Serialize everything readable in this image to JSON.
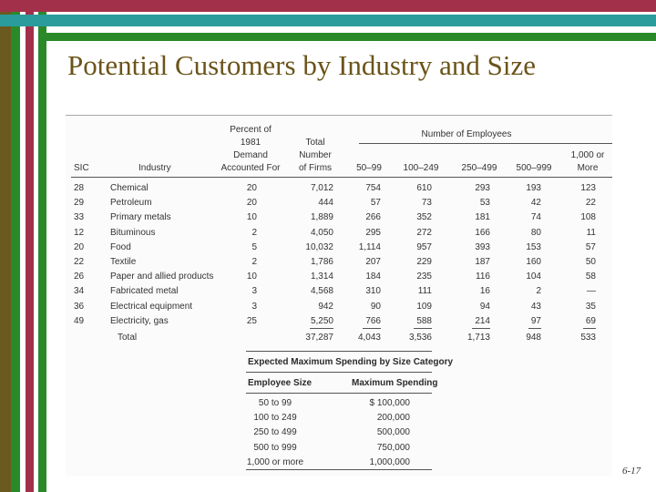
{
  "slide": {
    "title": "Potential Customers by Industry and Size",
    "number": "6-17",
    "colors": {
      "olive": "#6a5a1e",
      "green": "#2a8a2a",
      "maroon": "#a3304a",
      "teal": "#2a9c9c",
      "title": "#6b5419"
    }
  },
  "table1": {
    "headers": {
      "sic": "SIC",
      "industry": "Industry",
      "percent_lines": [
        "Percent of",
        "1981",
        "Demand",
        "Accounted For"
      ],
      "total_lines": [
        "Total",
        "Number",
        "of Firms"
      ],
      "employees_group": "Number of Employees",
      "col_50": "50–99",
      "col_100": "100–249",
      "col_250": "250–499",
      "col_500": "500–999",
      "col_1000_lines": [
        "1,000 or",
        "More"
      ]
    },
    "rows": [
      {
        "sic": "28",
        "industry": "Chemical",
        "percent": "20",
        "total": "7,012",
        "c1": "754",
        "c2": "610",
        "c3": "293",
        "c4": "193",
        "c5": "123"
      },
      {
        "sic": "29",
        "industry": "Petroleum",
        "percent": "20",
        "total": "444",
        "c1": "57",
        "c2": "73",
        "c3": "53",
        "c4": "42",
        "c5": "22"
      },
      {
        "sic": "33",
        "industry": "Primary metals",
        "percent": "10",
        "total": "1,889",
        "c1": "266",
        "c2": "352",
        "c3": "181",
        "c4": "74",
        "c5": "108"
      },
      {
        "sic": "12",
        "industry": "Bituminous",
        "percent": "2",
        "total": "4,050",
        "c1": "295",
        "c2": "272",
        "c3": "166",
        "c4": "80",
        "c5": "11"
      },
      {
        "sic": "20",
        "industry": "Food",
        "percent": "5",
        "total": "10,032",
        "c1": "1,114",
        "c2": "957",
        "c3": "393",
        "c4": "153",
        "c5": "57"
      },
      {
        "sic": "22",
        "industry": "Textile",
        "percent": "2",
        "total": "1,786",
        "c1": "207",
        "c2": "229",
        "c3": "187",
        "c4": "160",
        "c5": "50"
      },
      {
        "sic": "26",
        "industry": "Paper and allied products",
        "percent": "10",
        "total": "1,314",
        "c1": "184",
        "c2": "235",
        "c3": "116",
        "c4": "104",
        "c5": "58"
      },
      {
        "sic": "34",
        "industry": "Fabricated metal",
        "percent": "3",
        "total": "4,568",
        "c1": "310",
        "c2": "111",
        "c3": "16",
        "c4": "2",
        "c5": "—"
      },
      {
        "sic": "36",
        "industry": "Electrical equipment",
        "percent": "3",
        "total": "942",
        "c1": "90",
        "c2": "109",
        "c3": "94",
        "c4": "43",
        "c5": "35"
      },
      {
        "sic": "49",
        "industry": "Electricity, gas",
        "percent": "25",
        "total": "5,250",
        "c1": "766",
        "c2": "588",
        "c3": "214",
        "c4": "97",
        "c5": "69"
      }
    ],
    "total_row": {
      "label": "Total",
      "total": "37,287",
      "c1": "4,043",
      "c2": "3,536",
      "c3": "1,713",
      "c4": "948",
      "c5": "533"
    }
  },
  "table2": {
    "title": "Expected Maximum Spending by Size Category",
    "col_size": "Employee Size",
    "col_spend": "Maximum Spending",
    "rows": [
      {
        "size": "50 to 99",
        "spend": "$ 100,000"
      },
      {
        "size": "100 to 249",
        "spend": "200,000"
      },
      {
        "size": "250 to 499",
        "spend": "500,000"
      },
      {
        "size": "500 to 999",
        "spend": "750,000"
      },
      {
        "size": "1,000 or more",
        "spend": "1,000,000"
      }
    ]
  }
}
